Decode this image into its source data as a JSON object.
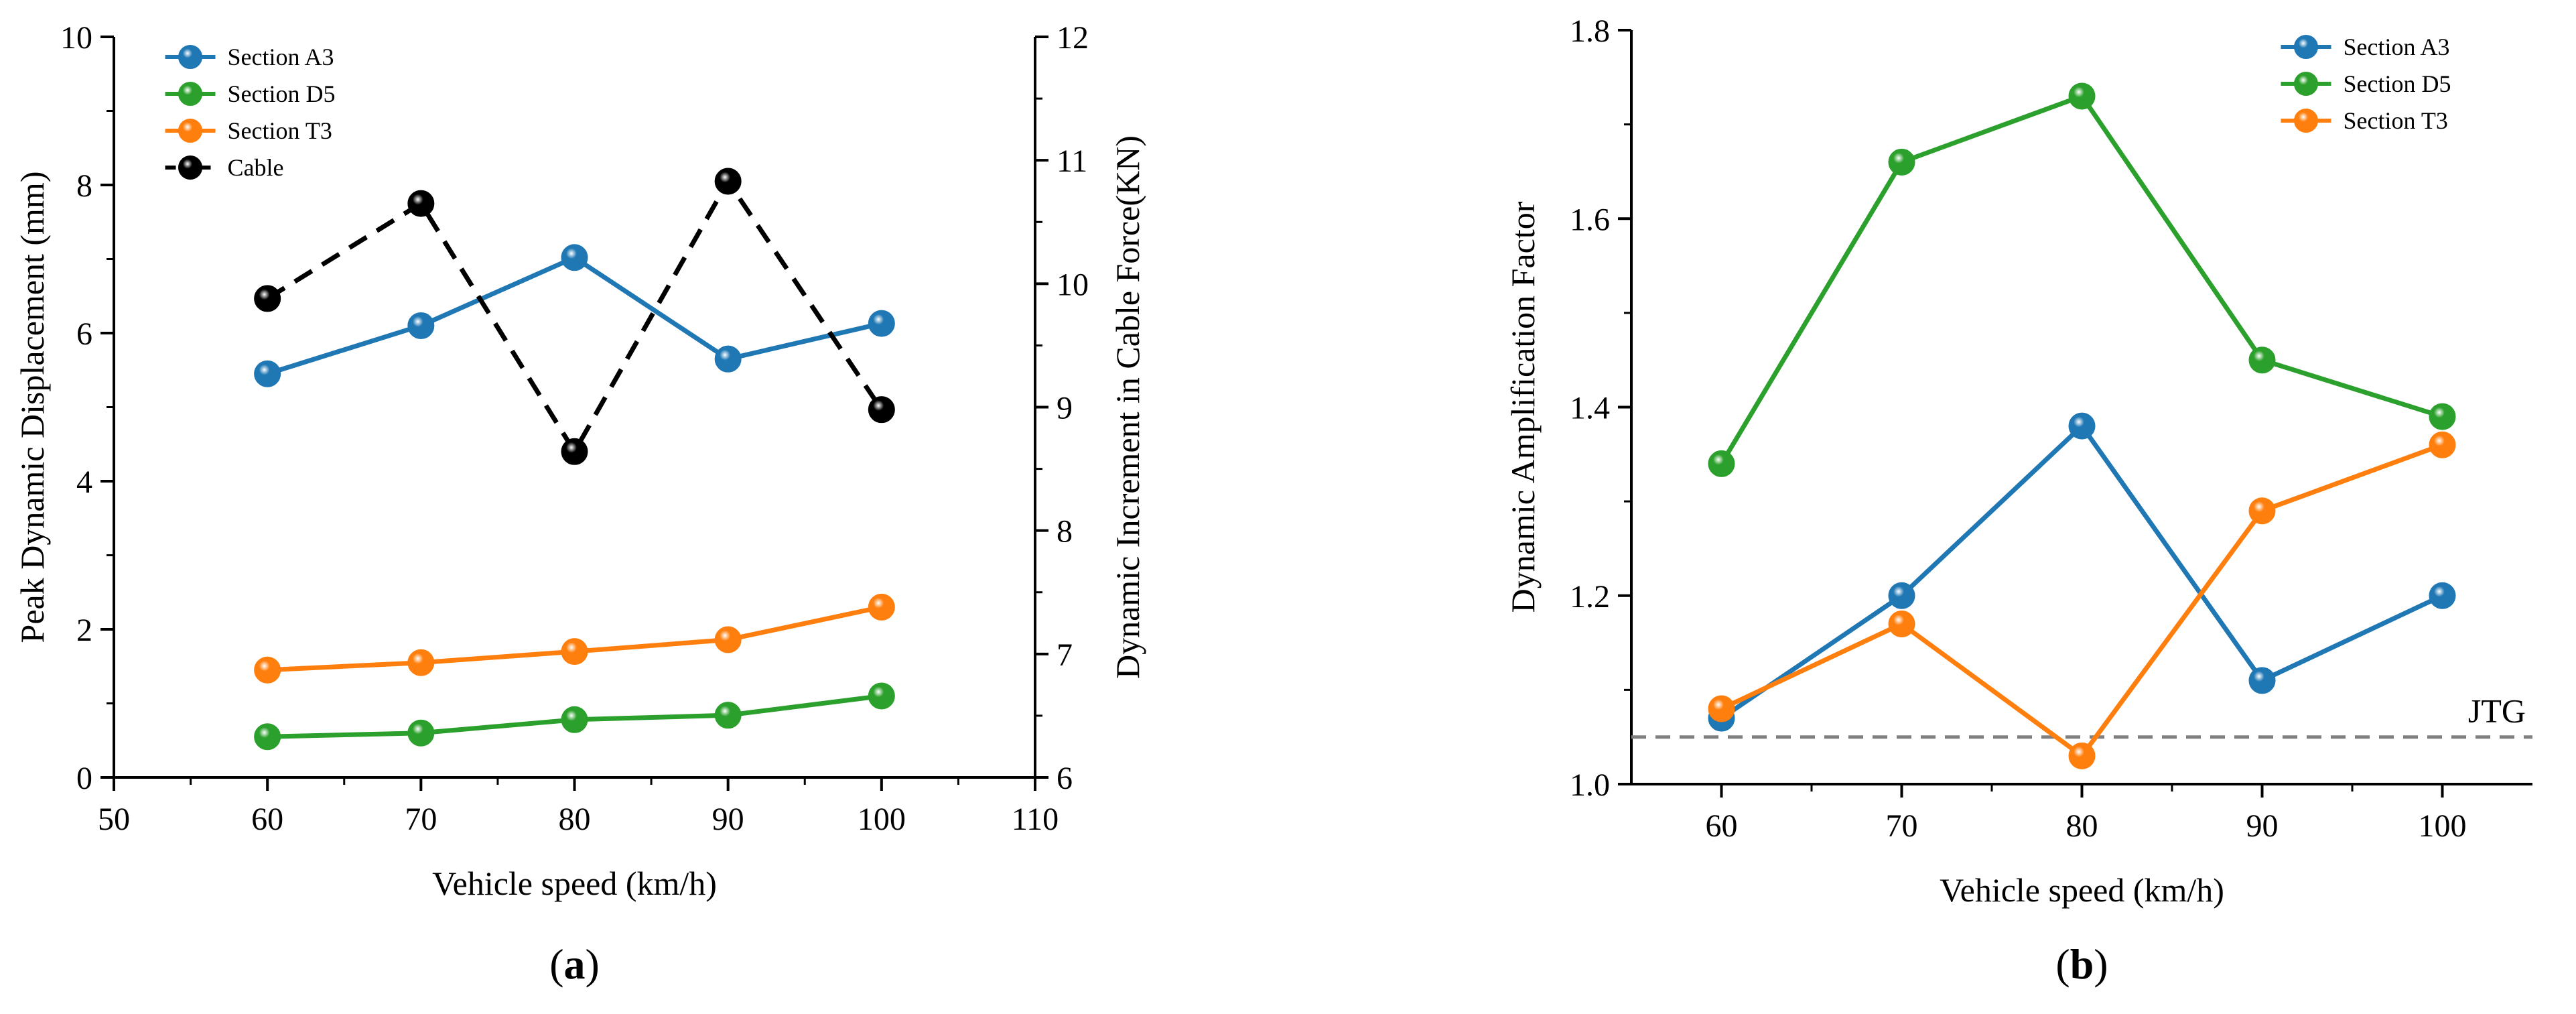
{
  "chart_data": [
    {
      "type": "line",
      "panel_label": "a",
      "xlabel": "Vehicle speed (km/h)",
      "ylabel": "Peak Dynamic Displacement (mm)",
      "ylabel_right": "Dynamic Increment in Cable Force(KN)",
      "xlim": [
        50,
        110
      ],
      "ylim": [
        0,
        10
      ],
      "ylim_right": [
        6,
        12
      ],
      "xticks": [
        "50",
        "60",
        "70",
        "80",
        "90",
        "100",
        "110"
      ],
      "yticks": [
        "0",
        "2",
        "4",
        "6",
        "8",
        "10"
      ],
      "yticks_right": [
        "6",
        "7",
        "8",
        "9",
        "10",
        "11",
        "12"
      ],
      "legend_position": "top-left",
      "series": [
        {
          "name": "Section A3",
          "color": "#1f77b4",
          "axis": "left",
          "dashed": false,
          "x": [
            60,
            70,
            80,
            90,
            100
          ],
          "values": [
            5.45,
            6.1,
            7.02,
            5.65,
            6.13
          ]
        },
        {
          "name": "Section D5",
          "color": "#2ca02c",
          "axis": "left",
          "dashed": false,
          "x": [
            60,
            70,
            80,
            90,
            100
          ],
          "values": [
            0.55,
            0.6,
            0.78,
            0.84,
            1.1
          ]
        },
        {
          "name": "Section T3",
          "color": "#ff7f0e",
          "axis": "left",
          "dashed": false,
          "x": [
            60,
            70,
            80,
            90,
            100
          ],
          "values": [
            1.45,
            1.55,
            1.7,
            1.86,
            2.3
          ]
        },
        {
          "name": "Cable",
          "color": "#000000",
          "axis": "right",
          "dashed": true,
          "x": [
            60,
            70,
            80,
            90,
            100
          ],
          "values": [
            9.88,
            10.65,
            8.64,
            10.83,
            8.98
          ]
        }
      ]
    },
    {
      "type": "line",
      "panel_label": "b",
      "xlabel": "Vehicle speed (km/h)",
      "ylabel": "Dynamic Amplification Factor",
      "xlim": [
        55,
        105
      ],
      "ylim": [
        1.0,
        1.8
      ],
      "xticks": [
        "60",
        "70",
        "80",
        "90",
        "100"
      ],
      "yticks": [
        "1.0",
        "1.2",
        "1.4",
        "1.6",
        "1.8"
      ],
      "legend_position": "top-right",
      "reference_line": {
        "label": "JTG",
        "value": 1.05,
        "color": "#808080"
      },
      "series": [
        {
          "name": "Section A3",
          "color": "#1f77b4",
          "dashed": false,
          "x": [
            60,
            70,
            80,
            90,
            100
          ],
          "values": [
            1.07,
            1.2,
            1.38,
            1.11,
            1.2
          ]
        },
        {
          "name": "Section D5",
          "color": "#2ca02c",
          "dashed": false,
          "x": [
            60,
            70,
            80,
            90,
            100
          ],
          "values": [
            1.34,
            1.66,
            1.73,
            1.45,
            1.39
          ]
        },
        {
          "name": "Section T3",
          "color": "#ff7f0e",
          "dashed": false,
          "x": [
            60,
            70,
            80,
            90,
            100
          ],
          "values": [
            1.08,
            1.17,
            1.03,
            1.29,
            1.36
          ]
        }
      ]
    }
  ]
}
